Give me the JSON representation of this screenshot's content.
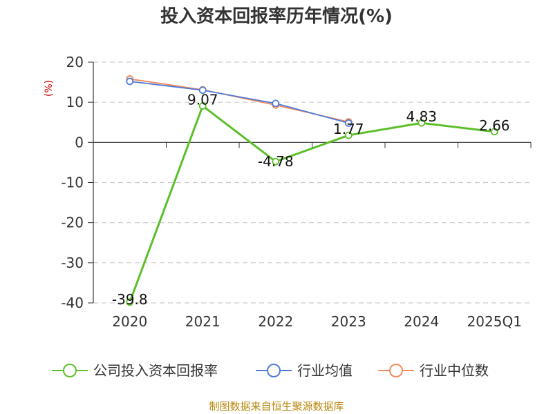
{
  "chart_data": {
    "type": "line",
    "title": "投入资本回报率历年情况(%)",
    "ylabel": "(%)",
    "xlabel": "",
    "categories": [
      "2020",
      "2021",
      "2022",
      "2023",
      "2024",
      "2025Q1"
    ],
    "ylim": [
      -40,
      20
    ],
    "yticks": [
      20,
      10,
      0,
      -10,
      -20,
      -30,
      -40
    ],
    "grid": true,
    "legend_position": "bottom",
    "series": [
      {
        "name": "公司投入资本回报率",
        "color": "#5cbf2a",
        "values": [
          -39.8,
          9.07,
          -4.78,
          1.77,
          4.83,
          2.66
        ],
        "data_labels": [
          "-39.8",
          "9.07",
          "-4.78",
          "1.77",
          "4.83",
          "2.66"
        ]
      },
      {
        "name": "行业均值",
        "color": "#4f7bd8",
        "values": [
          15.2,
          13.0,
          9.7,
          4.8,
          null,
          null
        ]
      },
      {
        "name": "行业中位数",
        "color": "#f28a5c",
        "values": [
          15.8,
          13.1,
          9.3,
          5.1,
          null,
          null
        ]
      }
    ]
  },
  "source_text": "制图数据来自恒生聚源数据库"
}
